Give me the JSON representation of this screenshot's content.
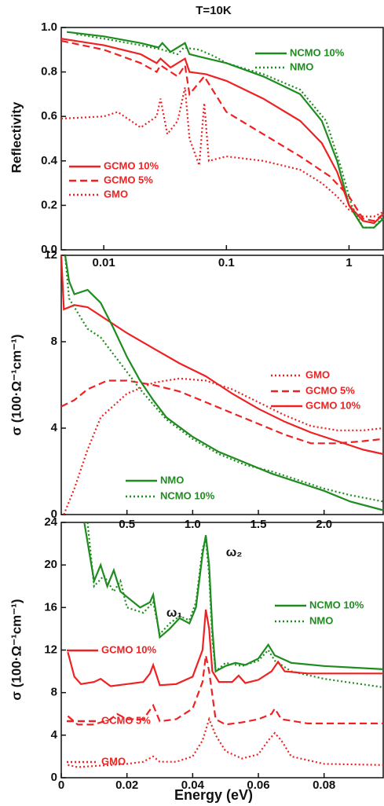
{
  "chart_data": [
    {
      "type": "line",
      "title": "T=10K",
      "y_label": "Reflectivity",
      "xlog": true,
      "xlim": [
        0.0045,
        1.9
      ],
      "xticks": [
        0.01,
        0.1,
        1
      ],
      "ylim": [
        0,
        1
      ],
      "yticks": [
        {
          "value": 0,
          "label": "0.0"
        },
        0.2,
        0.4,
        0.6,
        0.8,
        {
          "value": 1,
          "label": "1.0"
        }
      ],
      "series": [
        {
          "name": "NCMO 10%",
          "color": "#1e8c1e",
          "line_style": "solid",
          "x": [
            0.005,
            0.01,
            0.02,
            0.028,
            0.03,
            0.035,
            0.046,
            0.05,
            0.07,
            0.1,
            0.2,
            0.4,
            0.6,
            0.8,
            1.0,
            1.3,
            1.6,
            1.9
          ],
          "values": [
            0.98,
            0.96,
            0.93,
            0.91,
            0.93,
            0.89,
            0.93,
            0.88,
            0.86,
            0.84,
            0.78,
            0.7,
            0.58,
            0.4,
            0.2,
            0.1,
            0.1,
            0.14
          ]
        },
        {
          "name": "NMO",
          "color": "#1e8c1e",
          "line_style": "dotted",
          "x": [
            0.006,
            0.01,
            0.02,
            0.03,
            0.04,
            0.045,
            0.06,
            0.08,
            0.1,
            0.2,
            0.4,
            0.65,
            0.85,
            1.05,
            1.3,
            1.6,
            1.9
          ],
          "values": [
            0.97,
            0.95,
            0.92,
            0.9,
            0.88,
            0.91,
            0.9,
            0.87,
            0.84,
            0.79,
            0.72,
            0.58,
            0.38,
            0.2,
            0.1,
            0.1,
            0.15
          ]
        },
        {
          "name": "GCMO 10%",
          "color": "#ee2222",
          "line_style": "solid",
          "x": [
            0.0045,
            0.01,
            0.02,
            0.027,
            0.029,
            0.035,
            0.046,
            0.05,
            0.068,
            0.1,
            0.2,
            0.4,
            0.6,
            0.8,
            1.0,
            1.3,
            1.6,
            1.9
          ],
          "values": [
            0.95,
            0.92,
            0.88,
            0.84,
            0.86,
            0.82,
            0.86,
            0.8,
            0.79,
            0.76,
            0.68,
            0.58,
            0.48,
            0.35,
            0.2,
            0.13,
            0.12,
            0.16
          ]
        },
        {
          "name": "GCMO 5%",
          "color": "#ee2222",
          "line_style": "dashed",
          "x": [
            0.0045,
            0.01,
            0.02,
            0.027,
            0.029,
            0.04,
            0.046,
            0.05,
            0.066,
            0.1,
            0.2,
            0.4,
            0.7,
            1.0,
            1.3,
            1.6,
            1.9
          ],
          "values": [
            0.94,
            0.9,
            0.84,
            0.8,
            0.83,
            0.78,
            0.83,
            0.7,
            0.78,
            0.62,
            0.52,
            0.42,
            0.33,
            0.24,
            0.14,
            0.13,
            0.16
          ]
        },
        {
          "name": "GMO",
          "color": "#ee2222",
          "line_style": "dotted",
          "x": [
            0.0045,
            0.01,
            0.013,
            0.02,
            0.027,
            0.029,
            0.033,
            0.04,
            0.046,
            0.05,
            0.06,
            0.066,
            0.072,
            0.1,
            0.2,
            0.4,
            0.6,
            0.8,
            1.0,
            1.3,
            1.6,
            1.9
          ],
          "values": [
            0.59,
            0.6,
            0.62,
            0.55,
            0.6,
            0.68,
            0.52,
            0.58,
            0.73,
            0.5,
            0.38,
            0.66,
            0.4,
            0.42,
            0.4,
            0.36,
            0.3,
            0.24,
            0.18,
            0.15,
            0.15,
            0.17
          ]
        }
      ]
    },
    {
      "type": "line",
      "y_label": "σ (100·Ω⁻¹cm⁻¹)",
      "xlim": [
        0,
        2.45
      ],
      "xticks": [
        0.5,
        {
          "value": 1,
          "label": "1.0"
        },
        1.5,
        {
          "value": 2,
          "label": "2.0"
        }
      ],
      "ylim": [
        0,
        12
      ],
      "yticks": [
        0,
        4,
        8,
        12
      ],
      "series": [
        {
          "name": "GMO",
          "color": "#ee2222",
          "line_style": "dotted",
          "x": [
            0.02,
            0.1,
            0.2,
            0.3,
            0.5,
            0.7,
            0.9,
            1.1,
            1.3,
            1.5,
            1.7,
            1.9,
            2.1,
            2.3,
            2.45
          ],
          "values": [
            0,
            1.2,
            3,
            4.5,
            5.6,
            6.1,
            6.3,
            6.2,
            5.8,
            5.2,
            4.6,
            4.1,
            3.9,
            3.9,
            4.0
          ]
        },
        {
          "name": "GCMO 5%",
          "color": "#ee2222",
          "line_style": "dashed",
          "x": [
            0,
            0.1,
            0.2,
            0.35,
            0.5,
            0.7,
            0.9,
            1.1,
            1.3,
            1.5,
            1.7,
            1.9,
            2.1,
            2.3,
            2.45
          ],
          "values": [
            5.0,
            5.3,
            5.8,
            6.2,
            6.2,
            6.0,
            5.7,
            5.2,
            4.7,
            4.2,
            3.7,
            3.3,
            3.3,
            3.4,
            3.5
          ]
        },
        {
          "name": "GCMO 10%",
          "color": "#ee2222",
          "line_style": "solid",
          "x": [
            0,
            0.02,
            0.1,
            0.2,
            0.35,
            0.5,
            0.7,
            0.9,
            1.1,
            1.3,
            1.5,
            1.7,
            1.9,
            2.1,
            2.3,
            2.45
          ],
          "values": [
            12,
            9.5,
            9.7,
            9.6,
            9.0,
            8.4,
            7.7,
            7.0,
            6.4,
            5.6,
            4.9,
            4.3,
            3.8,
            3.4,
            3.0,
            2.8
          ]
        },
        {
          "name": "NMO",
          "color": "#1e8c1e",
          "line_style": "solid",
          "x": [
            0.03,
            0.06,
            0.1,
            0.2,
            0.3,
            0.4,
            0.5,
            0.6,
            0.7,
            0.8,
            1.0,
            1.2,
            1.4,
            1.6,
            1.8,
            2.0,
            2.2,
            2.45
          ],
          "values": [
            12,
            10.8,
            10.2,
            10.4,
            9.8,
            8.6,
            7.3,
            6.2,
            5.3,
            4.5,
            3.6,
            2.9,
            2.4,
            1.9,
            1.5,
            1.1,
            0.6,
            0.2
          ]
        },
        {
          "name": "NCMO 10%",
          "color": "#1e8c1e",
          "line_style": "dotted",
          "x": [
            0.03,
            0.06,
            0.1,
            0.2,
            0.3,
            0.4,
            0.5,
            0.6,
            0.7,
            0.8,
            1.0,
            1.2,
            1.4,
            1.6,
            1.8,
            2.0,
            2.2,
            2.45
          ],
          "values": [
            12,
            10.0,
            9.6,
            8.6,
            8.2,
            7.4,
            6.6,
            5.8,
            5.1,
            4.4,
            3.5,
            2.8,
            2.3,
            2.0,
            1.6,
            1.2,
            0.9,
            0.6
          ]
        }
      ]
    },
    {
      "type": "line",
      "y_label": "σ (100·Ω⁻¹cm⁻¹)",
      "x_label": "Energy (eV)",
      "annotations": [
        "ω₁",
        "ω₂"
      ],
      "xlim": [
        0,
        0.098
      ],
      "xticks": [
        0,
        0.02,
        0.04,
        0.06,
        0.08
      ],
      "ylim": [
        0,
        24
      ],
      "yticks": [
        0,
        4,
        8,
        12,
        16,
        20,
        24
      ],
      "series": [
        {
          "name": "NCMO 10%",
          "color": "#1e8c1e",
          "line_style": "solid",
          "x": [
            0.007,
            0.01,
            0.012,
            0.014,
            0.016,
            0.018,
            0.02,
            0.024,
            0.027,
            0.028,
            0.03,
            0.033,
            0.036,
            0.039,
            0.041,
            0.043,
            0.044,
            0.045,
            0.046,
            0.047,
            0.05,
            0.053,
            0.056,
            0.06,
            0.063,
            0.065,
            0.07,
            0.08,
            0.098
          ],
          "values": [
            24,
            18.5,
            20,
            18,
            19.5,
            17.5,
            17,
            16,
            16.5,
            17.2,
            13.2,
            14,
            15,
            14.5,
            16,
            21,
            22.8,
            20,
            14,
            10,
            10.5,
            10.8,
            10.6,
            11.2,
            12.5,
            11.5,
            10.8,
            10.5,
            10.2
          ]
        },
        {
          "name": "NMO",
          "color": "#1e8c1e",
          "line_style": "dotted",
          "x": [
            0.008,
            0.01,
            0.013,
            0.016,
            0.018,
            0.02,
            0.025,
            0.028,
            0.03,
            0.033,
            0.036,
            0.039,
            0.041,
            0.043,
            0.044,
            0.045,
            0.046,
            0.047,
            0.05,
            0.055,
            0.06,
            0.063,
            0.065,
            0.07,
            0.08,
            0.098
          ],
          "values": [
            24,
            18,
            19,
            17.5,
            18.5,
            16,
            15.5,
            16.5,
            13.5,
            14.5,
            15.2,
            14.8,
            16.5,
            21.5,
            22.5,
            19,
            13,
            10,
            10.8,
            10.5,
            11,
            12,
            11,
            10,
            9.3,
            8.5
          ]
        },
        {
          "name": "GCMO 10%",
          "color": "#ee2222",
          "line_style": "solid",
          "x": [
            0.002,
            0.004,
            0.006,
            0.01,
            0.012,
            0.015,
            0.02,
            0.025,
            0.027,
            0.028,
            0.03,
            0.035,
            0.04,
            0.043,
            0.044,
            0.045,
            0.046,
            0.048,
            0.052,
            0.054,
            0.056,
            0.06,
            0.064,
            0.066,
            0.068,
            0.075,
            0.098
          ],
          "values": [
            11.8,
            9.5,
            8.8,
            9,
            9.3,
            8.6,
            8.8,
            9,
            9.8,
            10.6,
            8.7,
            8.8,
            9.5,
            12,
            15.8,
            14,
            10,
            9,
            9,
            9.6,
            8.9,
            9.2,
            10,
            10.9,
            10,
            9.8,
            9.8
          ]
        },
        {
          "name": "GCMO 5%",
          "color": "#ee2222",
          "line_style": "dashed",
          "x": [
            0.002,
            0.005,
            0.01,
            0.015,
            0.017,
            0.02,
            0.025,
            0.028,
            0.03,
            0.035,
            0.04,
            0.043,
            0.044,
            0.045,
            0.047,
            0.05,
            0.055,
            0.06,
            0.064,
            0.065,
            0.067,
            0.075,
            0.098
          ],
          "values": [
            5.8,
            5,
            5,
            5.5,
            6,
            5.5,
            5.5,
            6.8,
            5.3,
            5.5,
            6.5,
            9,
            11.5,
            10,
            5.5,
            5,
            5.2,
            5.5,
            6,
            6.5,
            5.5,
            5.1,
            5.1
          ]
        },
        {
          "name": "GMO",
          "color": "#ee2222",
          "line_style": "dotted",
          "x": [
            0.002,
            0.005,
            0.01,
            0.015,
            0.02,
            0.025,
            0.028,
            0.03,
            0.035,
            0.04,
            0.043,
            0.045,
            0.047,
            0.05,
            0.055,
            0.06,
            0.063,
            0.065,
            0.067,
            0.07,
            0.08,
            0.098
          ],
          "values": [
            1.2,
            1,
            1.1,
            1.2,
            1.3,
            1.5,
            2.0,
            1.5,
            1.5,
            2,
            3.5,
            5.5,
            4,
            2.5,
            1.8,
            2.2,
            3.5,
            4.2,
            3.5,
            2,
            1.3,
            1.2
          ]
        }
      ]
    }
  ]
}
